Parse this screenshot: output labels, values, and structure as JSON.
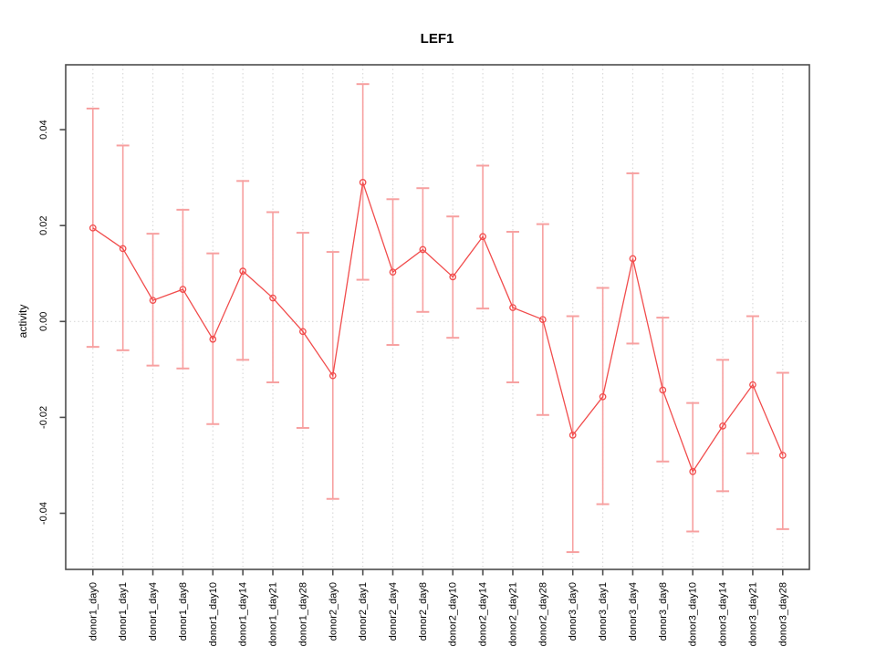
{
  "chart_data": {
    "type": "line",
    "subtype": "line-with-error-bars",
    "title": "LEF1",
    "xlabel": "",
    "ylabel": "activity",
    "legend": "none",
    "grid": "vertical dotted gridline at every category; dotted horizontal line at y=0",
    "ylim": [
      -0.052,
      0.0535
    ],
    "yticks": [
      0.04,
      0.02,
      0,
      -0.02,
      -0.04
    ],
    "ytick_labels": [
      "0.04",
      "0.02",
      "0.00",
      "-0.02",
      "-0.04"
    ],
    "categories": [
      "donor1_day0",
      "donor1_day1",
      "donor1_day4",
      "donor1_day8",
      "donor1_day10",
      "donor1_day14",
      "donor1_day21",
      "donor1_day28",
      "donor2_day0",
      "donor2_day1",
      "donor2_day4",
      "donor2_day8",
      "donor2_day10",
      "donor2_day14",
      "donor2_day21",
      "donor2_day28",
      "donor3_day0",
      "donor3_day1",
      "donor3_day4",
      "donor3_day8",
      "donor3_day10",
      "donor3_day14",
      "donor3_day21",
      "donor3_day28"
    ],
    "series": [
      {
        "name": "activity",
        "values": [
          0.0195,
          0.0152,
          0.0044,
          0.0067,
          -0.0037,
          0.0105,
          0.0049,
          -0.0021,
          -0.0113,
          0.029,
          0.0103,
          0.015,
          0.0093,
          0.0177,
          0.0029,
          0.0004,
          -0.0237,
          -0.0157,
          0.0131,
          -0.0143,
          -0.0313,
          -0.0218,
          -0.0132,
          -0.0279
        ],
        "lower": [
          -0.0053,
          -0.006,
          -0.0092,
          -0.0098,
          -0.0214,
          -0.008,
          -0.0127,
          -0.0222,
          -0.037,
          0.0087,
          -0.0049,
          0.002,
          -0.0034,
          0.0027,
          -0.0127,
          -0.0195,
          -0.0481,
          -0.0381,
          -0.0046,
          -0.0292,
          -0.0438,
          -0.0354,
          -0.0275,
          -0.0433
        ],
        "upper": [
          0.0444,
          0.0367,
          0.0183,
          0.0233,
          0.0142,
          0.0293,
          0.0228,
          0.0185,
          0.0145,
          0.0495,
          0.0255,
          0.0278,
          0.0219,
          0.0325,
          0.0187,
          0.0203,
          0.0011,
          0.007,
          0.0309,
          0.0008,
          -0.017,
          -0.008,
          0.0011,
          -0.0107
        ]
      }
    ],
    "colors": {
      "line": "#f14c4c",
      "point": "#f14c4c",
      "error_bar": "#f7a0a0",
      "gridline": "#dadada",
      "zero_line": "#dadada",
      "axis": "#4d4d4d",
      "tick_text": "#000000",
      "background": "#ffffff"
    }
  }
}
